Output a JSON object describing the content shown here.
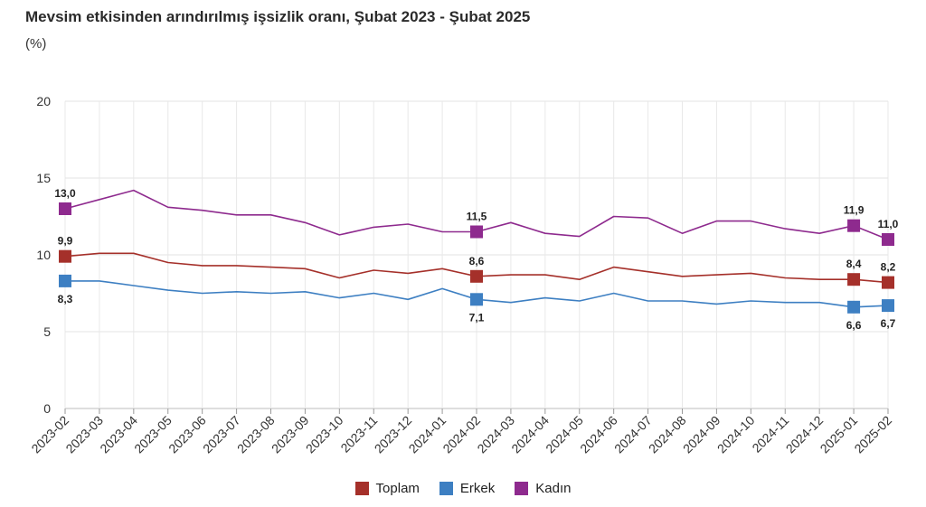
{
  "title": "Mevsim etkisinden arındırılmış işsizlik oranı, Şubat 2023 - Şubat 2025",
  "unit": "(%)",
  "chart_data": {
    "type": "line",
    "title": "Mevsim etkisinden arındırılmış işsizlik oranı, Şubat 2023 - Şubat 2025",
    "ylabel": "(%)",
    "xlabel": "",
    "ylim": [
      0,
      20
    ],
    "yticks": [
      0,
      5,
      10,
      15,
      20
    ],
    "grid": true,
    "legend_position": "bottom",
    "categories": [
      "2023-02",
      "2023-03",
      "2023-04",
      "2023-05",
      "2023-06",
      "2023-07",
      "2023-08",
      "2023-09",
      "2023-10",
      "2023-11",
      "2023-12",
      "2024-01",
      "2024-02",
      "2024-03",
      "2024-04",
      "2024-05",
      "2024-06",
      "2024-07",
      "2024-08",
      "2024-09",
      "2024-10",
      "2024-11",
      "2024-12",
      "2025-01",
      "2025-02"
    ],
    "series": [
      {
        "name": "Toplam",
        "color": "#a5302a",
        "values": [
          9.9,
          10.1,
          10.1,
          9.5,
          9.3,
          9.3,
          9.2,
          9.1,
          8.5,
          9.0,
          8.8,
          9.1,
          8.6,
          8.7,
          8.7,
          8.4,
          9.2,
          8.9,
          8.6,
          8.7,
          8.8,
          8.5,
          8.4,
          8.4,
          8.2
        ],
        "labels": [
          {
            "index": 0,
            "text": "9,9",
            "pos": "above"
          },
          {
            "index": 12,
            "text": "8,6",
            "pos": "above"
          },
          {
            "index": 23,
            "text": "8,4",
            "pos": "above"
          },
          {
            "index": 24,
            "text": "8,2",
            "pos": "above"
          }
        ]
      },
      {
        "name": "Erkek",
        "color": "#3d7fc2",
        "values": [
          8.3,
          8.3,
          8.0,
          7.7,
          7.5,
          7.6,
          7.5,
          7.6,
          7.2,
          7.5,
          7.1,
          7.8,
          7.1,
          6.9,
          7.2,
          7.0,
          7.5,
          7.0,
          7.0,
          6.8,
          7.0,
          6.9,
          6.9,
          6.6,
          6.7
        ],
        "labels": [
          {
            "index": 0,
            "text": "8,3",
            "pos": "below"
          },
          {
            "index": 12,
            "text": "7,1",
            "pos": "below"
          },
          {
            "index": 23,
            "text": "6,6",
            "pos": "below"
          },
          {
            "index": 24,
            "text": "6,7",
            "pos": "below"
          }
        ]
      },
      {
        "name": "Kadın",
        "color": "#8e2a8e",
        "values": [
          13.0,
          13.6,
          14.2,
          13.1,
          12.9,
          12.6,
          12.6,
          12.1,
          11.3,
          11.8,
          12.0,
          11.5,
          11.5,
          12.1,
          11.4,
          11.2,
          12.5,
          12.4,
          11.4,
          12.2,
          12.2,
          11.7,
          11.4,
          11.9,
          11.0
        ],
        "labels": [
          {
            "index": 0,
            "text": "13,0",
            "pos": "above"
          },
          {
            "index": 12,
            "text": "11,5",
            "pos": "above"
          },
          {
            "index": 23,
            "text": "11,9",
            "pos": "above"
          },
          {
            "index": 24,
            "text": "11,0",
            "pos": "above"
          }
        ]
      }
    ]
  }
}
